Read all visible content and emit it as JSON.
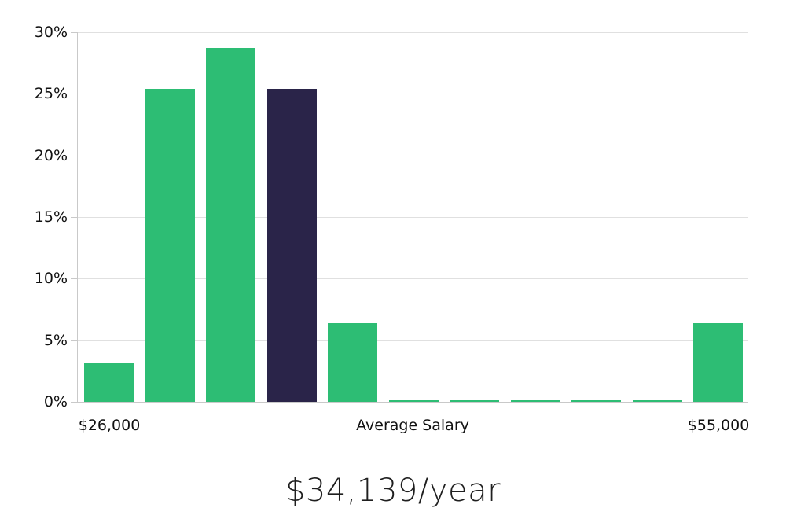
{
  "chart_data": {
    "type": "bar",
    "title": "$34,139/year",
    "xlabel": "",
    "ylabel": "",
    "ylim": [
      0,
      30
    ],
    "grid": true,
    "legend": "none",
    "y_ticks": [
      {
        "label": "0%",
        "value": 0
      },
      {
        "label": "5%",
        "value": 5
      },
      {
        "label": "10%",
        "value": 10
      },
      {
        "label": "15%",
        "value": 15
      },
      {
        "label": "20%",
        "value": 20
      },
      {
        "label": "25%",
        "value": 25
      },
      {
        "label": "30%",
        "value": 30
      }
    ],
    "bars": [
      {
        "value": 3.2,
        "highlight": false
      },
      {
        "value": 25.4,
        "highlight": false
      },
      {
        "value": 28.7,
        "highlight": false
      },
      {
        "value": 25.4,
        "highlight": true
      },
      {
        "value": 6.4,
        "highlight": false
      },
      {
        "value": 0.15,
        "highlight": false
      },
      {
        "value": 0.15,
        "highlight": false
      },
      {
        "value": 0.15,
        "highlight": false
      },
      {
        "value": 0.15,
        "highlight": false
      },
      {
        "value": 0.15,
        "highlight": false
      },
      {
        "value": 6.4,
        "highlight": false
      }
    ],
    "x_labels": [
      {
        "text": "$26,000",
        "anchor": "bar",
        "bar_index": 0
      },
      {
        "text": "Average Salary",
        "anchor": "center"
      },
      {
        "text": "$55,000",
        "anchor": "bar",
        "bar_index": 10
      }
    ],
    "colors": {
      "bar": "#2dbd74",
      "highlight_bar": "#2a2449",
      "gridline": "#e0e0e0",
      "axis_line": "#c9c9c9",
      "tick_text": "#111111",
      "title_text": "#1f1f1f"
    }
  }
}
